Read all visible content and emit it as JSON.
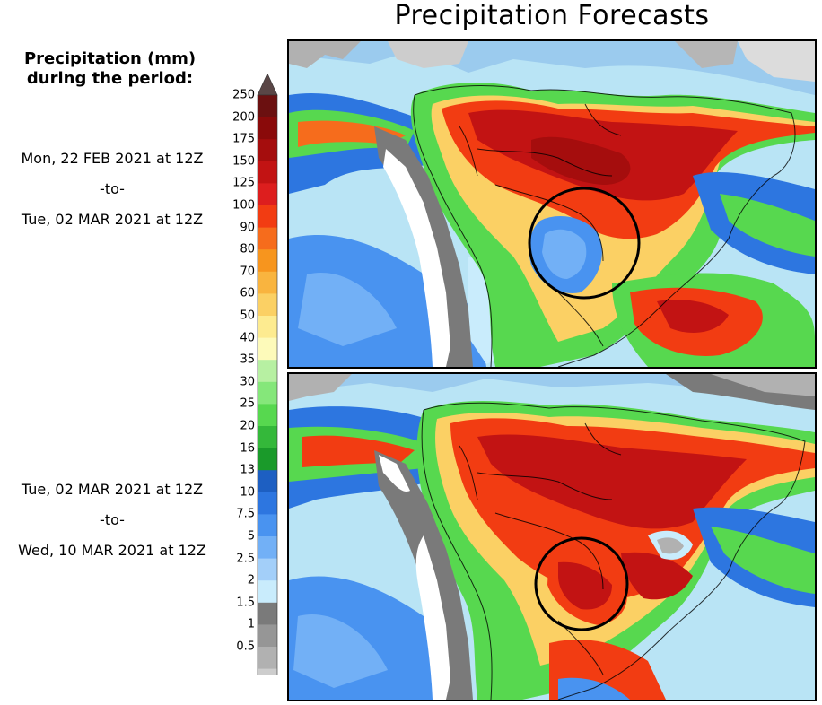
{
  "title": "Precipitation Forecasts",
  "legend": {
    "heading_line1": "Precipitation (mm)",
    "heading_line2": "during the period:",
    "scale_values": [
      "250",
      "200",
      "175",
      "150",
      "125",
      "100",
      "90",
      "80",
      "70",
      "60",
      "50",
      "40",
      "35",
      "30",
      "25",
      "20",
      "16",
      "13",
      "10",
      "7.5",
      "5",
      "2.5",
      "2",
      "1.5",
      "1",
      "0.5"
    ],
    "scale_colors": [
      "#6b1010",
      "#8a0a0a",
      "#a50d0d",
      "#c21313",
      "#dd1e1e",
      "#f23c12",
      "#f66c1c",
      "#f7951e",
      "#f9b43f",
      "#fbd064",
      "#fdeb90",
      "#fdfaba",
      "#b7f0a2",
      "#85e77a",
      "#57d84f",
      "#34b83a",
      "#1a9a2a",
      "#1d5fc2",
      "#2d76e0",
      "#4993f0",
      "#72b0f6",
      "#a3cff9",
      "#c9ecfc",
      "#7a7a7a",
      "#969696",
      "#b1b1b1",
      "#cdcdcd"
    ],
    "top_arrow_color": "#5a4646"
  },
  "periods": [
    {
      "from": "Mon, 22 FEB 2021 at 12Z",
      "sep": "-to-",
      "to": "Tue, 02 MAR 2021 at 12Z"
    },
    {
      "from": "Tue, 02 MAR 2021 at 12Z",
      "sep": "-to-",
      "to": "Wed, 10 MAR 2021 at 12Z"
    }
  ],
  "maps": [
    {
      "region": "South America",
      "highlight": "circle"
    },
    {
      "region": "South America",
      "highlight": "circle"
    }
  ]
}
